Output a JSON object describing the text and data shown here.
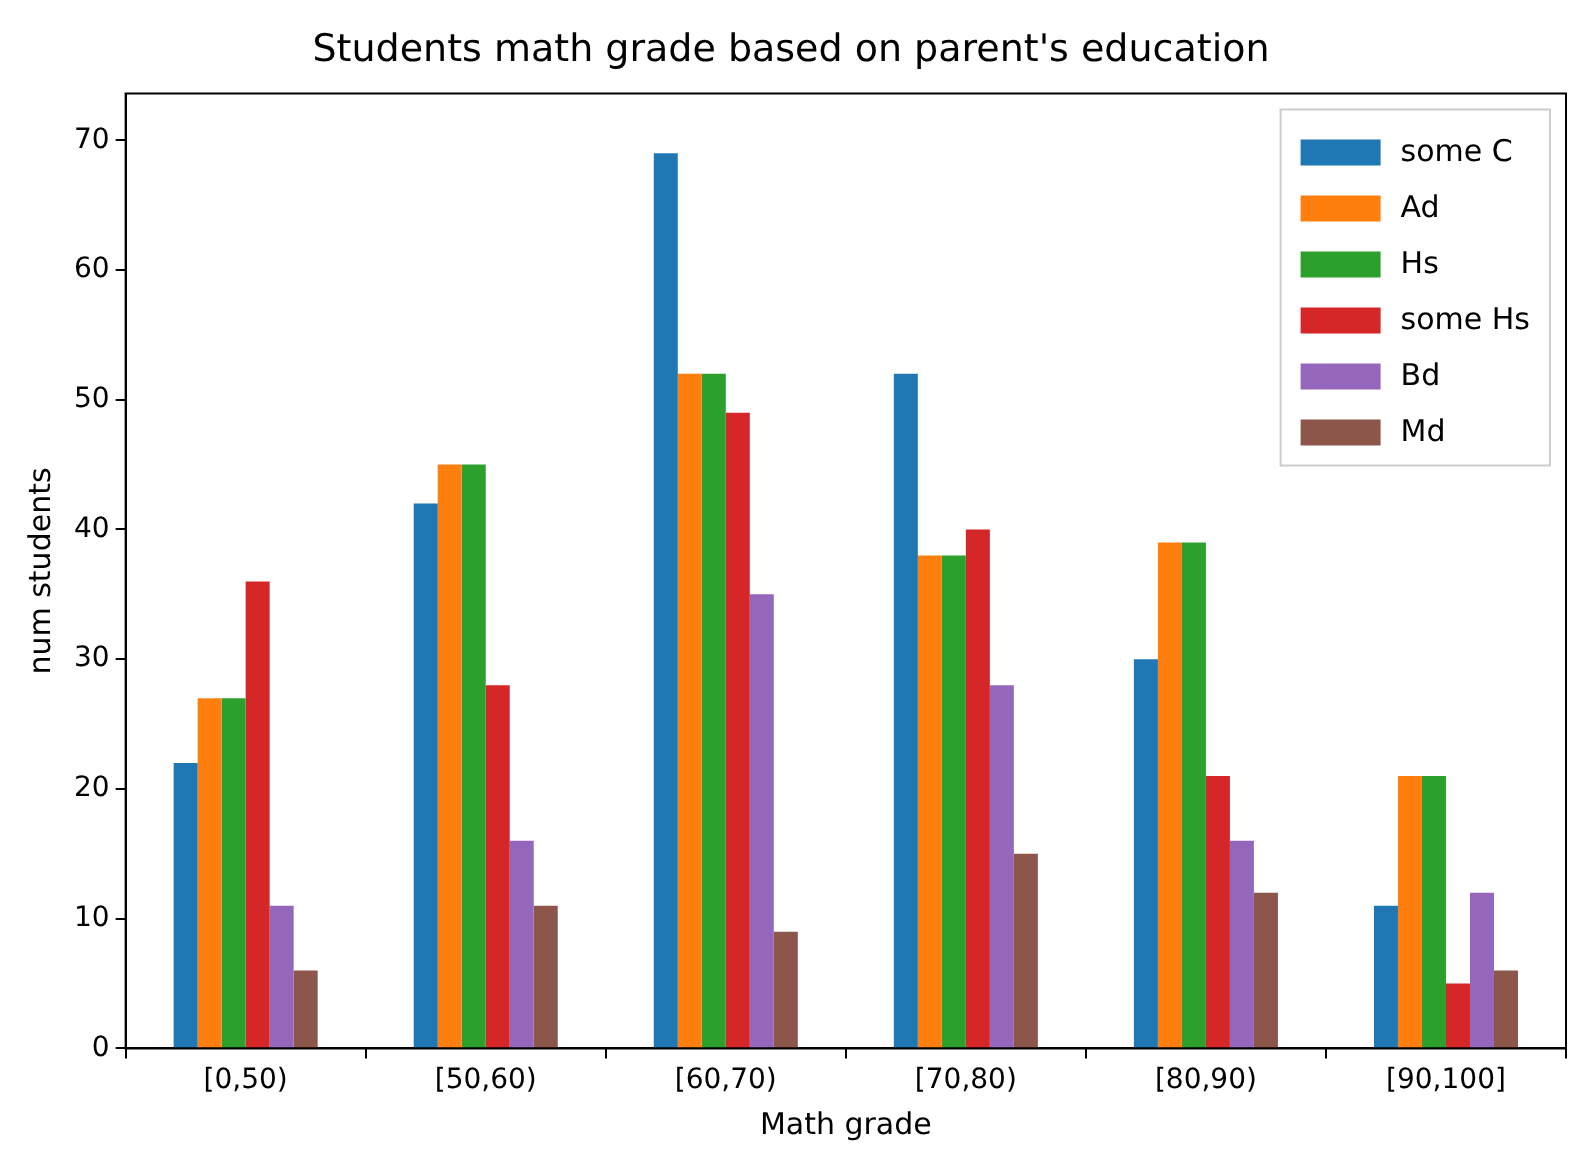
{
  "chart_data": {
    "type": "bar",
    "title": "Students math grade based on parent's education",
    "xlabel": "Math grade",
    "ylabel": "num students",
    "categories": [
      "[0,50)",
      "[50,60)",
      "[60,70)",
      "[70,80)",
      "[80,90)",
      "[90,100]"
    ],
    "series": [
      {
        "name": "some C",
        "color": "#1f77b4",
        "values": [
          22,
          42,
          69,
          52,
          30,
          11
        ]
      },
      {
        "name": "Ad",
        "color": "#ff7f0e",
        "values": [
          27,
          45,
          52,
          38,
          39,
          21
        ]
      },
      {
        "name": "Hs",
        "color": "#2ca02c",
        "values": [
          27,
          45,
          52,
          38,
          39,
          21
        ]
      },
      {
        "name": "some Hs",
        "color": "#d62728",
        "values": [
          36,
          28,
          49,
          40,
          21,
          5
        ]
      },
      {
        "name": "Bd",
        "color": "#9467bd",
        "values": [
          11,
          16,
          35,
          28,
          16,
          12
        ]
      },
      {
        "name": "Md",
        "color": "#8c564b",
        "values": [
          6,
          11,
          9,
          15,
          12,
          6
        ]
      }
    ],
    "ylim": [
      0,
      73.6
    ],
    "yticks": [
      0,
      10,
      20,
      30,
      40,
      50,
      60,
      70
    ],
    "grid": false,
    "legend": "top right"
  }
}
